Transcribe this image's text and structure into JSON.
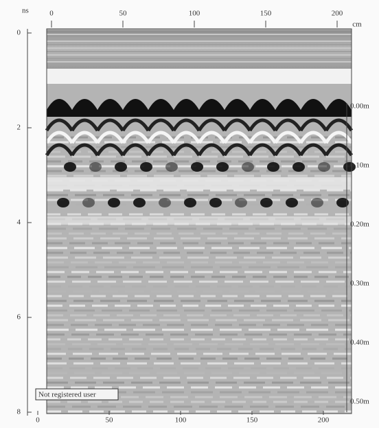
{
  "top_axis": {
    "unit": "ns",
    "ticks": [
      "0",
      "50",
      "100",
      "150",
      "200"
    ],
    "end_unit": "cm"
  },
  "left_axis": {
    "ticks": [
      "0",
      "2",
      "4",
      "6",
      "8"
    ]
  },
  "right_axis": {
    "ticks": [
      "0.00m",
      "0.10m",
      "0.20m",
      "0.30m",
      "0.40m",
      "0.50m"
    ]
  },
  "bottom_axis": {
    "ticks": [
      "0",
      "50",
      "100",
      "150",
      "200"
    ]
  },
  "watermark": "Not registered user"
}
